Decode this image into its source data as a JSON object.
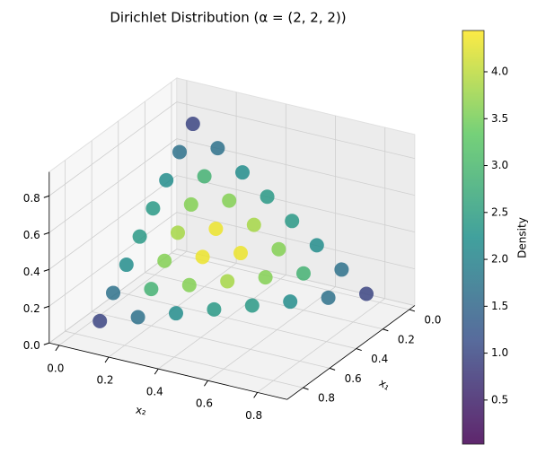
{
  "chart_data": {
    "type": "scatter3d",
    "title": "Dirichlet Distribution (α = (2, 2, 2))",
    "x_label": "x₁",
    "y_label": "x₂",
    "colorbar_label": "Density",
    "colormap": "viridis",
    "clim": [
      0.03,
      4.44
    ],
    "cticks": [
      0.5,
      {
        "value": 1.0,
        "label": "1.0"
      },
      1.5,
      {
        "value": 2.0,
        "label": "2.0"
      },
      2.5,
      {
        "value": 3.0,
        "label": "3.0"
      },
      3.5,
      {
        "value": 4.0,
        "label": "4.0"
      }
    ],
    "xlim": [
      -0.04,
      0.92
    ],
    "ylim": [
      -0.04,
      0.92
    ],
    "zlim": [
      0,
      0.93
    ],
    "xticks": [
      {
        "value": 0,
        "label": "0.0"
      },
      0.2,
      0.4,
      0.6,
      0.8
    ],
    "yticks": [
      {
        "value": 0,
        "label": "0.0"
      },
      0.2,
      0.4,
      0.6,
      0.8
    ],
    "zticks": [
      {
        "value": 0,
        "label": "0.0"
      },
      0.2,
      0.4,
      0.6,
      0.8
    ],
    "grid": true,
    "x": [
      0.1,
      0.1,
      0.1,
      0.1,
      0.1,
      0.1,
      0.1,
      0.1,
      0.2,
      0.2,
      0.2,
      0.2,
      0.2,
      0.2,
      0.2,
      0.3,
      0.3,
      0.3,
      0.3,
      0.3,
      0.3,
      0.4,
      0.4,
      0.4,
      0.4,
      0.4,
      0.5,
      0.5,
      0.5,
      0.5,
      0.6,
      0.6,
      0.6,
      0.7,
      0.7,
      0.8
    ],
    "y": [
      0.1,
      0.2,
      0.3,
      0.4,
      0.5,
      0.6,
      0.7,
      0.8,
      0.1,
      0.2,
      0.3,
      0.4,
      0.5,
      0.6,
      0.7,
      0.1,
      0.2,
      0.3,
      0.4,
      0.5,
      0.6,
      0.1,
      0.2,
      0.3,
      0.4,
      0.5,
      0.1,
      0.2,
      0.3,
      0.4,
      0.1,
      0.2,
      0.3,
      0.1,
      0.2,
      0.1
    ],
    "z": [
      0.8,
      0.7,
      0.6,
      0.5,
      0.4,
      0.3,
      0.2,
      0.1,
      0.7,
      0.6,
      0.5,
      0.4,
      0.3,
      0.2,
      0.1,
      0.6,
      0.5,
      0.4,
      0.3,
      0.2,
      0.1,
      0.5,
      0.4,
      0.3,
      0.2,
      0.1,
      0.4,
      0.3,
      0.2,
      0.1,
      0.3,
      0.2,
      0.1,
      0.2,
      0.1,
      0.1
    ],
    "density": [
      0.96,
      1.68,
      2.16,
      2.4,
      2.4,
      2.16,
      1.68,
      0.96,
      1.68,
      2.88,
      3.6,
      3.84,
      3.6,
      2.88,
      1.68,
      2.16,
      3.6,
      4.32,
      4.32,
      3.6,
      2.16,
      2.4,
      3.84,
      4.32,
      3.84,
      2.4,
      2.4,
      3.6,
      3.6,
      2.4,
      2.16,
      2.88,
      2.16,
      1.68,
      1.68,
      0.96
    ]
  }
}
